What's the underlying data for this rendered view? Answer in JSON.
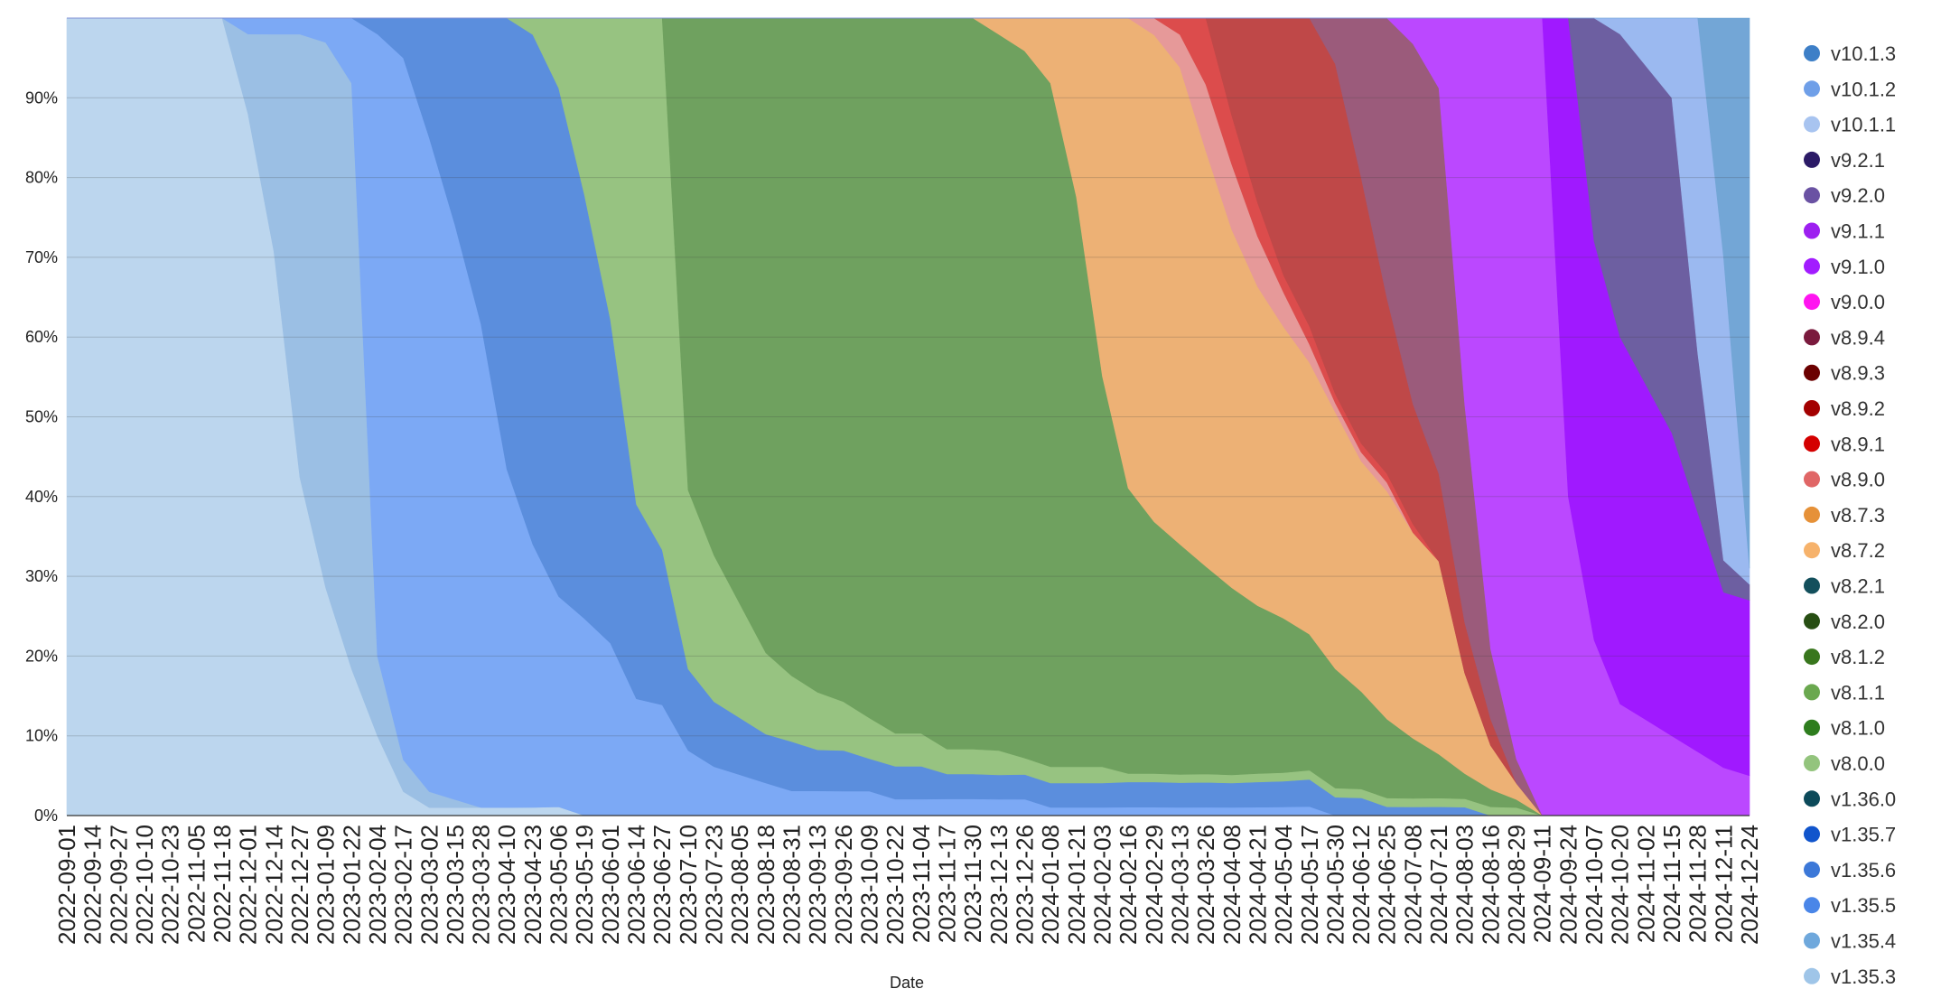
{
  "chart_data": {
    "type": "area",
    "stacked": "percent",
    "title": "",
    "xlabel": "Date",
    "ylabel": "",
    "ylim": [
      0,
      100
    ],
    "grid": true,
    "legend_position": "right",
    "yticks": [
      "0%",
      "10%",
      "20%",
      "30%",
      "40%",
      "50%",
      "60%",
      "70%",
      "80%",
      "90%"
    ],
    "x": [
      "2022-09-01",
      "2022-09-14",
      "2022-09-27",
      "2022-10-10",
      "2022-10-23",
      "2022-11-05",
      "2022-11-18",
      "2022-12-01",
      "2022-12-14",
      "2022-12-27",
      "2023-01-09",
      "2023-01-22",
      "2023-02-04",
      "2023-02-17",
      "2023-03-02",
      "2023-03-15",
      "2023-03-28",
      "2023-04-10",
      "2023-04-23",
      "2023-05-06",
      "2023-05-19",
      "2023-06-01",
      "2023-06-14",
      "2023-06-27",
      "2023-07-10",
      "2023-07-23",
      "2023-08-05",
      "2023-08-18",
      "2023-08-31",
      "2023-09-13",
      "2023-09-26",
      "2023-10-09",
      "2023-10-22",
      "2023-11-04",
      "2023-11-17",
      "2023-11-30",
      "2023-12-13",
      "2023-12-26",
      "2024-01-08",
      "2024-01-21",
      "2024-02-03",
      "2024-02-16",
      "2024-02-29",
      "2024-03-13",
      "2024-03-26",
      "2024-04-08",
      "2024-04-21",
      "2024-05-04",
      "2024-05-17",
      "2024-05-30",
      "2024-06-12",
      "2024-06-25",
      "2024-07-08",
      "2024-07-21",
      "2024-08-03",
      "2024-08-16",
      "2024-08-29",
      "2024-09-11",
      "2024-09-24",
      "2024-10-07",
      "2024-10-20",
      "2024-11-02",
      "2024-11-15",
      "2024-11-28",
      "2024-12-11",
      "2024-12-24"
    ],
    "legend": [
      {
        "name": "v10.1.3",
        "color": "#3d7fc7"
      },
      {
        "name": "v10.1.2",
        "color": "#6f9fe8"
      },
      {
        "name": "v10.1.1",
        "color": "#a8c4f0"
      },
      {
        "name": "v9.2.1",
        "color": "#2b1a66"
      },
      {
        "name": "v9.2.0",
        "color": "#6a52a3"
      },
      {
        "name": "v9.1.1",
        "color": "#9d1ff0"
      },
      {
        "name": "v9.1.0",
        "color": "#a21cff"
      },
      {
        "name": "v9.0.0",
        "color": "#ff14f0"
      },
      {
        "name": "v8.9.4",
        "color": "#7a1a3d"
      },
      {
        "name": "v8.9.3",
        "color": "#6b0000"
      },
      {
        "name": "v8.9.2",
        "color": "#a30000"
      },
      {
        "name": "v8.9.1",
        "color": "#d40000"
      },
      {
        "name": "v8.9.0",
        "color": "#e06666"
      },
      {
        "name": "v8.7.3",
        "color": "#e69138"
      },
      {
        "name": "v8.7.2",
        "color": "#f6b26b"
      },
      {
        "name": "v8.2.1",
        "color": "#134f5c"
      },
      {
        "name": "v8.2.0",
        "color": "#274e13"
      },
      {
        "name": "v8.1.2",
        "color": "#38761d"
      },
      {
        "name": "v8.1.1",
        "color": "#6aa84f"
      },
      {
        "name": "v8.1.0",
        "color": "#2e7d1e"
      },
      {
        "name": "v8.0.0",
        "color": "#93c47d"
      },
      {
        "name": "v1.36.0",
        "color": "#0c4a5a"
      },
      {
        "name": "v1.35.7",
        "color": "#1155cc"
      },
      {
        "name": "v1.35.6",
        "color": "#3c78d8"
      },
      {
        "name": "v1.35.5",
        "color": "#4a86e8"
      },
      {
        "name": "v1.35.4",
        "color": "#6fa8dc"
      },
      {
        "name": "v1.35.3",
        "color": "#9fc5e8"
      }
    ],
    "series": [
      {
        "name": "v1.35.3",
        "color": "#bcd6ee",
        "values": [
          100,
          100,
          100,
          100,
          100,
          100,
          100,
          88,
          70,
          42,
          28,
          18,
          10,
          3,
          1,
          1,
          1,
          1,
          1,
          1,
          0,
          0,
          0,
          0,
          0,
          0,
          0,
          0,
          0,
          0,
          0,
          0,
          0,
          0,
          0,
          0,
          0,
          0,
          0,
          0,
          0,
          0,
          0,
          0,
          0,
          0,
          0,
          0,
          0,
          0,
          0,
          0,
          0,
          0,
          0,
          0,
          0,
          0,
          0,
          0,
          0,
          0,
          0,
          0,
          0,
          0
        ]
      },
      {
        "name": "v1.35.4",
        "color": "#9bbfe4",
        "values": [
          0,
          0,
          0,
          0,
          0,
          0,
          0,
          10,
          27,
          55,
          67,
          72,
          10,
          4,
          2,
          1,
          0,
          0,
          0,
          0,
          0,
          0,
          0,
          0,
          0,
          0,
          0,
          0,
          0,
          0,
          0,
          0,
          0,
          0,
          0,
          0,
          0,
          0,
          0,
          0,
          0,
          0,
          0,
          0,
          0,
          0,
          0,
          0,
          0,
          0,
          0,
          0,
          0,
          0,
          0,
          0,
          0,
          0,
          0,
          0,
          0,
          0,
          0,
          0,
          0,
          0
        ]
      },
      {
        "name": "v1.35.5",
        "color": "#7ca9f5",
        "values": [
          0,
          0,
          0,
          0,
          0,
          0,
          0,
          2,
          2,
          2,
          3,
          8,
          78,
          88,
          82,
          72,
          60,
          42,
          32,
          24,
          20,
          16,
          12,
          10,
          8,
          6,
          5,
          4,
          3,
          3,
          3,
          3,
          2,
          2,
          2,
          2,
          2,
          2,
          1,
          1,
          1,
          1,
          1,
          1,
          1,
          1,
          1,
          1,
          1,
          0,
          0,
          0,
          0,
          0,
          0,
          0,
          0,
          0,
          0,
          0,
          0,
          0,
          0,
          0,
          0,
          0
        ]
      },
      {
        "name": "v1.35.6",
        "color": "#5b8edd",
        "values": [
          0,
          0,
          0,
          0,
          0,
          0,
          0,
          0,
          0,
          0,
          0,
          0,
          2,
          5,
          15,
          26,
          38,
          56,
          62,
          58,
          43,
          30,
          20,
          14,
          10,
          8,
          7,
          6,
          6,
          5,
          5,
          4,
          4,
          4,
          3,
          3,
          3,
          3,
          3,
          3,
          3,
          3,
          3,
          3,
          3,
          3,
          3,
          3,
          3,
          2,
          2,
          1,
          1,
          1,
          1,
          0,
          0,
          0,
          0,
          0,
          0,
          0,
          0,
          0,
          0,
          0
        ]
      },
      {
        "name": "v8.0.0",
        "color": "#97c381",
        "values": [
          0,
          0,
          0,
          0,
          0,
          0,
          0,
          0,
          0,
          0,
          0,
          0,
          0,
          0,
          0,
          0,
          0,
          0,
          2,
          8,
          18,
          28,
          50,
          48,
          22,
          18,
          14,
          10,
          8,
          7,
          6,
          5,
          4,
          4,
          3,
          3,
          3,
          2,
          2,
          2,
          2,
          1,
          1,
          1,
          1,
          1,
          1,
          1,
          1,
          1,
          1,
          1,
          1,
          1,
          1,
          1,
          1,
          0,
          0,
          0,
          0,
          0,
          0,
          0,
          0,
          0
        ]
      },
      {
        "name": "v8.1.1",
        "color": "#6fa15f",
        "values": [
          0,
          0,
          0,
          0,
          0,
          0,
          0,
          0,
          0,
          0,
          0,
          0,
          0,
          0,
          0,
          0,
          0,
          0,
          0,
          0,
          0,
          0,
          0,
          0,
          58,
          66,
          72,
          78,
          80,
          82,
          84,
          86,
          87,
          87,
          88,
          88,
          88,
          86,
          84,
          70,
          48,
          34,
          30,
          28,
          25,
          23,
          20,
          18,
          15,
          13,
          11,
          9,
          7,
          5,
          3,
          2,
          1,
          0,
          0,
          0,
          0,
          0,
          0,
          0,
          0,
          0
        ]
      },
      {
        "name": "v8.7.2",
        "color": "#edb175",
        "values": [
          0,
          0,
          0,
          0,
          0,
          0,
          0,
          0,
          0,
          0,
          0,
          0,
          0,
          0,
          0,
          0,
          0,
          0,
          0,
          0,
          0,
          0,
          0,
          0,
          0,
          0,
          0,
          0,
          0,
          0,
          0,
          0,
          0,
          0,
          0,
          0,
          2,
          4,
          8,
          22,
          44,
          56,
          58,
          58,
          50,
          44,
          38,
          34,
          30,
          28,
          26,
          26,
          24,
          22,
          12,
          5,
          2,
          0,
          0,
          0,
          0,
          0,
          0,
          0,
          0,
          0
        ]
      },
      {
        "name": "v8.9.0",
        "color": "#e69999",
        "values": [
          0,
          0,
          0,
          0,
          0,
          0,
          0,
          0,
          0,
          0,
          0,
          0,
          0,
          0,
          0,
          0,
          0,
          0,
          0,
          0,
          0,
          0,
          0,
          0,
          0,
          0,
          0,
          0,
          0,
          0,
          0,
          0,
          0,
          0,
          0,
          0,
          0,
          0,
          0,
          0,
          0,
          0,
          2,
          4,
          8,
          8,
          6,
          4,
          2,
          1,
          1,
          1,
          0,
          0,
          0,
          0,
          0,
          0,
          0,
          0,
          0,
          0,
          0,
          0,
          0,
          0
        ]
      },
      {
        "name": "v8.9.1",
        "color": "#dc4c4c",
        "values": [
          0,
          0,
          0,
          0,
          0,
          0,
          0,
          0,
          0,
          0,
          0,
          0,
          0,
          0,
          0,
          0,
          0,
          0,
          0,
          0,
          0,
          0,
          0,
          0,
          0,
          0,
          0,
          0,
          0,
          0,
          0,
          0,
          0,
          0,
          0,
          0,
          0,
          0,
          0,
          0,
          0,
          0,
          0,
          2,
          8,
          6,
          4,
          2,
          2,
          1,
          1,
          1,
          1,
          0,
          0,
          0,
          0,
          0,
          0,
          0,
          0,
          0,
          0,
          0,
          0,
          0
        ]
      },
      {
        "name": "v8.9.2",
        "color": "#bf4848",
        "values": [
          0,
          0,
          0,
          0,
          0,
          0,
          0,
          0,
          0,
          0,
          0,
          0,
          0,
          0,
          0,
          0,
          0,
          0,
          0,
          0,
          0,
          0,
          0,
          0,
          0,
          0,
          0,
          0,
          0,
          0,
          0,
          0,
          0,
          0,
          0,
          0,
          0,
          0,
          0,
          0,
          0,
          0,
          0,
          0,
          0,
          12,
          22,
          30,
          34,
          36,
          30,
          20,
          14,
          10,
          6,
          3,
          0,
          0,
          0,
          0,
          0,
          0,
          0,
          0,
          0,
          0
        ]
      },
      {
        "name": "v8.9.4",
        "color": "#9b5b7b",
        "values": [
          0,
          0,
          0,
          0,
          0,
          0,
          0,
          0,
          0,
          0,
          0,
          0,
          0,
          0,
          0,
          0,
          0,
          0,
          0,
          0,
          0,
          0,
          0,
          0,
          0,
          0,
          0,
          0,
          0,
          0,
          0,
          0,
          0,
          0,
          0,
          0,
          0,
          0,
          0,
          0,
          0,
          0,
          0,
          0,
          0,
          0,
          0,
          0,
          0,
          5,
          18,
          32,
          42,
          44,
          26,
          8,
          3,
          0,
          0,
          0,
          0,
          0,
          0,
          0,
          0,
          0
        ]
      },
      {
        "name": "v9.1.0",
        "color": "#bb48ff",
        "values": [
          0,
          0,
          0,
          0,
          0,
          0,
          0,
          0,
          0,
          0,
          0,
          0,
          0,
          0,
          0,
          0,
          0,
          0,
          0,
          0,
          0,
          0,
          0,
          0,
          0,
          0,
          0,
          0,
          0,
          0,
          0,
          0,
          0,
          0,
          0,
          0,
          0,
          0,
          0,
          0,
          0,
          0,
          0,
          0,
          0,
          0,
          0,
          0,
          0,
          0,
          0,
          0,
          3,
          8,
          46,
          72,
          92,
          100,
          40,
          22,
          14,
          12,
          10,
          8,
          6,
          5
        ]
      },
      {
        "name": "v9.1.1",
        "color": "#a019ff",
        "values": [
          0,
          0,
          0,
          0,
          0,
          0,
          0,
          0,
          0,
          0,
          0,
          0,
          0,
          0,
          0,
          0,
          0,
          0,
          0,
          0,
          0,
          0,
          0,
          0,
          0,
          0,
          0,
          0,
          0,
          0,
          0,
          0,
          0,
          0,
          0,
          0,
          0,
          0,
          0,
          0,
          0,
          0,
          0,
          0,
          0,
          0,
          0,
          0,
          0,
          0,
          0,
          0,
          0,
          0,
          0,
          0,
          0,
          0,
          60,
          50,
          46,
          42,
          38,
          30,
          22,
          22
        ]
      },
      {
        "name": "v9.2.0",
        "color": "#6d5fa1",
        "values": [
          0,
          0,
          0,
          0,
          0,
          0,
          0,
          0,
          0,
          0,
          0,
          0,
          0,
          0,
          0,
          0,
          0,
          0,
          0,
          0,
          0,
          0,
          0,
          0,
          0,
          0,
          0,
          0,
          0,
          0,
          0,
          0,
          0,
          0,
          0,
          0,
          0,
          0,
          0,
          0,
          0,
          0,
          0,
          0,
          0,
          0,
          0,
          0,
          0,
          0,
          0,
          0,
          0,
          0,
          0,
          0,
          0,
          0,
          0,
          28,
          38,
          40,
          42,
          20,
          4,
          2
        ]
      },
      {
        "name": "v10.1.2",
        "color": "#9bb9f0",
        "values": [
          0,
          0,
          0,
          0,
          0,
          0,
          0,
          0,
          0,
          0,
          0,
          0,
          0,
          0,
          0,
          0,
          0,
          0,
          0,
          0,
          0,
          0,
          0,
          0,
          0,
          0,
          0,
          0,
          0,
          0,
          0,
          0,
          0,
          0,
          0,
          0,
          0,
          0,
          0,
          0,
          0,
          0,
          0,
          0,
          0,
          0,
          0,
          0,
          0,
          0,
          0,
          0,
          0,
          0,
          0,
          0,
          0,
          0,
          0,
          0,
          2,
          6,
          10,
          42,
          38,
          2
        ]
      },
      {
        "name": "v10.1.3",
        "color": "#73a6d6",
        "values": [
          0,
          0,
          0,
          0,
          0,
          0,
          0,
          0,
          0,
          0,
          0,
          0,
          0,
          0,
          0,
          0,
          0,
          0,
          0,
          0,
          0,
          0,
          0,
          0,
          0,
          0,
          0,
          0,
          0,
          0,
          0,
          0,
          0,
          0,
          0,
          0,
          0,
          0,
          0,
          0,
          0,
          0,
          0,
          0,
          0,
          0,
          0,
          0,
          0,
          0,
          0,
          0,
          0,
          0,
          0,
          0,
          0,
          0,
          0,
          0,
          0,
          0,
          0,
          0,
          30,
          69
        ]
      }
    ]
  }
}
